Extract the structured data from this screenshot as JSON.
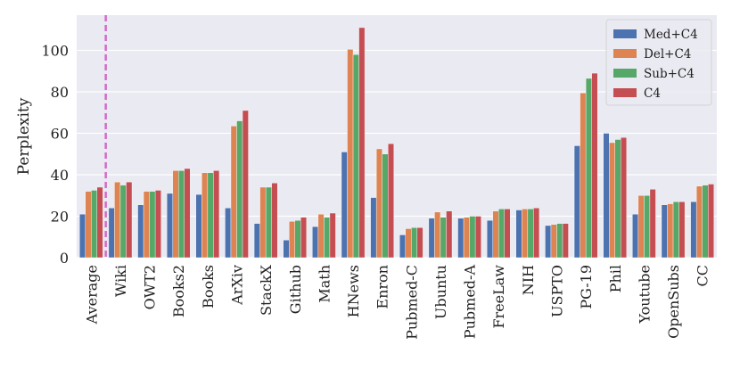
{
  "chart_data": {
    "type": "bar",
    "title": "",
    "xlabel": "",
    "ylabel": "Perplexity",
    "ylim": [
      0,
      117
    ],
    "yticks": [
      0,
      20,
      40,
      60,
      80,
      100
    ],
    "grid": true,
    "legend_position": "top-right",
    "categories": [
      "Average",
      "Wiki",
      "OWT2",
      "Books2",
      "Books",
      "ArXiv",
      "StackX",
      "Github",
      "Math",
      "HNews",
      "Enron",
      "Pubmed-C",
      "Ubuntu",
      "Pubmed-A",
      "FreeLaw",
      "NIH",
      "USPTO",
      "PG-19",
      "Phil",
      "Youtube",
      "OpenSubs",
      "CC"
    ],
    "series": [
      {
        "name": "Med+C4",
        "color": "#4c72b0",
        "values": [
          21,
          24,
          25.5,
          31,
          30.5,
          24,
          16.5,
          8.5,
          15,
          51,
          29,
          11,
          19,
          19,
          18,
          23,
          15.5,
          54,
          60,
          21,
          25.5,
          27
        ]
      },
      {
        "name": "Del+C4",
        "color": "#dd8452",
        "values": [
          32,
          36.5,
          32,
          42,
          41,
          63.5,
          34,
          17.5,
          21,
          100.5,
          52.5,
          14,
          22,
          19.5,
          22.5,
          23.5,
          16,
          79.5,
          55.5,
          30,
          26,
          34.5
        ]
      },
      {
        "name": "Sub+C4",
        "color": "#55a868",
        "values": [
          32.5,
          35,
          32,
          42,
          41,
          66,
          34,
          18,
          19.5,
          98,
          50,
          14.5,
          19.5,
          20,
          23.5,
          23.5,
          16.5,
          86.5,
          57,
          30,
          27,
          35
        ]
      },
      {
        "name": "C4",
        "color": "#c44e52",
        "values": [
          34,
          36.5,
          32.5,
          43,
          42,
          71,
          36,
          19.5,
          21.5,
          111,
          55,
          14.5,
          22.5,
          20,
          23.5,
          24,
          16.5,
          89,
          58,
          33,
          27,
          35.5
        ]
      }
    ],
    "reference_line": {
      "position": "between Average and Wiki",
      "style": "dashed",
      "color": "#d46bc8"
    }
  }
}
